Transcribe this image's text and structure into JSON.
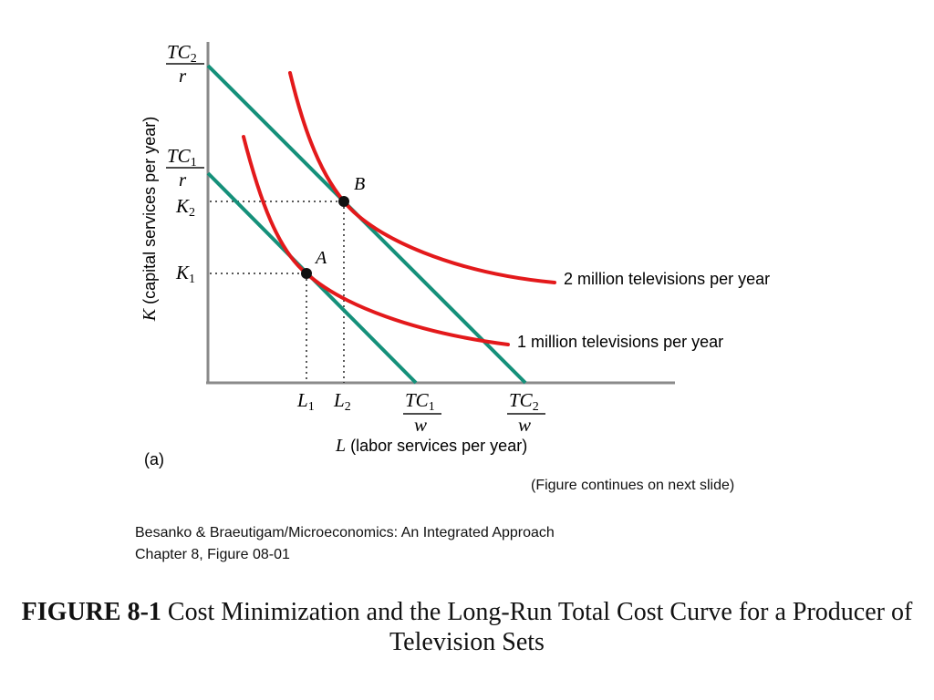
{
  "figure": {
    "panel_label": "(a)",
    "x_axis_label": {
      "var": "L",
      "text": " (labor services per year)"
    },
    "y_axis_label": {
      "var": "K",
      "text": " (capital services per year)"
    },
    "y_ticks": {
      "tc2_over_r": {
        "num": "TC",
        "sub": "2",
        "den": "r"
      },
      "tc1_over_r": {
        "num": "TC",
        "sub": "1",
        "den": "r"
      },
      "k2": {
        "main": "K",
        "sub": "2"
      },
      "k1": {
        "main": "K",
        "sub": "1"
      }
    },
    "x_ticks": {
      "l1": {
        "main": "L",
        "sub": "1"
      },
      "l2": {
        "main": "L",
        "sub": "2"
      },
      "tc1_over_w": {
        "num": "TC",
        "sub": "1",
        "den": "w"
      },
      "tc2_over_w": {
        "num": "TC",
        "sub": "2",
        "den": "w"
      }
    },
    "points": {
      "a": "A",
      "b": "B"
    },
    "isoquants": [
      {
        "label": "1 million televisions per year"
      },
      {
        "label": "2 million televisions per year"
      }
    ],
    "colors": {
      "isoquant": "#e3191b",
      "isocost": "#15907a",
      "axis": "#8a8a8a",
      "point": "#111111"
    }
  },
  "footer": {
    "continues": "(Figure continues on next slide)",
    "source_line1": "Besanko & Braeutigam/Microeconomics: An Integrated Approach",
    "source_line2": "Chapter 8, Figure 08-01"
  },
  "caption": {
    "bold": "FIGURE 8-1",
    "text": " Cost Minimization and the Long-Run Total Cost Curve for a Producer of Television Sets"
  }
}
